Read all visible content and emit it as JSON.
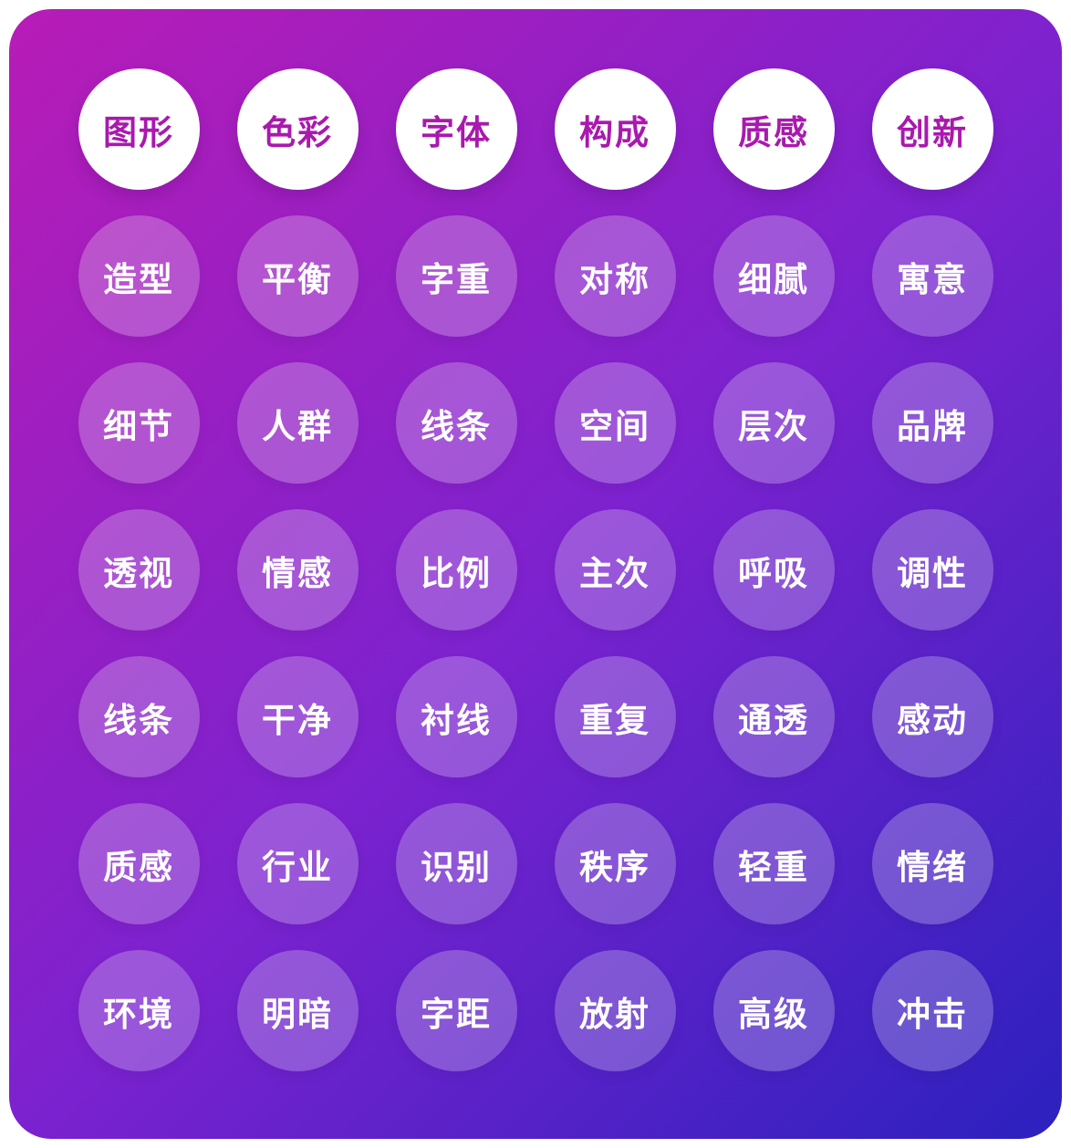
{
  "theme": {
    "page_background": "#ffffff",
    "gradient_from": "#b81cb6",
    "gradient_mid": "#7b22cf",
    "gradient_to": "#2b21be",
    "gradient_angle": "135deg",
    "header_circle_bg": "#ffffff",
    "header_text_color": "#a919ae",
    "cell_circle_bg": "rgba(255,255,255,0.24)",
    "cell_text_color": "#ffffff"
  },
  "grid": {
    "headers": [
      "图形",
      "色彩",
      "字体",
      "构成",
      "质感",
      "创新"
    ],
    "rows": [
      [
        "造型",
        "平衡",
        "字重",
        "对称",
        "细腻",
        "寓意"
      ],
      [
        "细节",
        "人群",
        "线条",
        "空间",
        "层次",
        "品牌"
      ],
      [
        "透视",
        "情感",
        "比例",
        "主次",
        "呼吸",
        "调性"
      ],
      [
        "线条",
        "干净",
        "衬线",
        "重复",
        "通透",
        "感动"
      ],
      [
        "质感",
        "行业",
        "识别",
        "秩序",
        "轻重",
        "情绪"
      ],
      [
        "环境",
        "明暗",
        "字距",
        "放射",
        "高级",
        "冲击"
      ]
    ]
  }
}
